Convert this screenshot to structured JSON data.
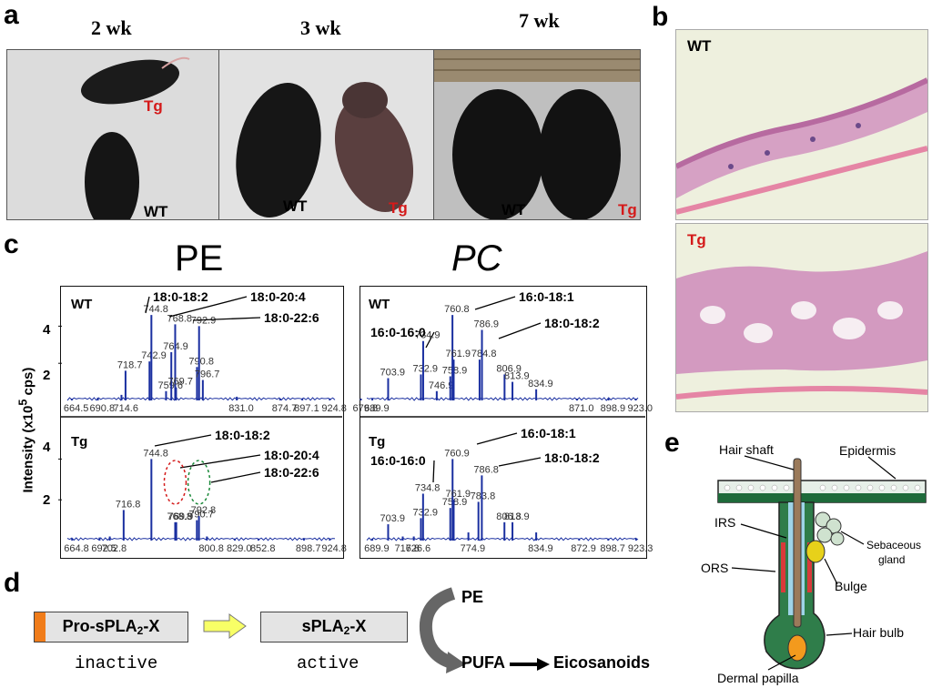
{
  "panels": {
    "a": {
      "label": "a",
      "ages": [
        "2 wk",
        "3 wk",
        "7 wk"
      ],
      "wt": "WT",
      "tg": "Tg"
    },
    "b": {
      "label": "b",
      "wt": "WT",
      "tg": "Tg"
    },
    "c": {
      "label": "c",
      "pe_title": "PE",
      "pc_title": "PC",
      "ylabel": "Intensity (x10",
      "ylabel_exp": "5",
      "ylabel_unit": " cps)",
      "yticks": [
        "4",
        "2"
      ],
      "wt": "WT",
      "tg": "Tg"
    },
    "d": {
      "label": "d",
      "pro": "Pro-sPLA",
      "pro_sub": "2",
      "pro_end": "-X",
      "active_enzyme": "sPLA",
      "active_sub": "2",
      "active_end": "-X",
      "inactive": "inactive",
      "active": "active",
      "pe": "PE",
      "pufa": "PUFA",
      "eicosanoids": "Eicosanoids"
    },
    "e": {
      "label": "e",
      "hair_shaft": "Hair shaft",
      "epidermis": "Epidermis",
      "irs": "IRS",
      "sebaceous1": "Sebaceous",
      "sebaceous2": "gland",
      "ors": "ORS",
      "bulge": "Bulge",
      "hair_bulb": "Hair bulb",
      "dermal_papilla": "Dermal papilla"
    }
  },
  "chart_data": [
    {
      "type": "bar",
      "title": "PE",
      "group": "WT",
      "ylabel": "Intensity (x10^5 cps)",
      "yticks": [
        2,
        4
      ],
      "ylim": [
        0,
        5
      ],
      "xlim": [
        660,
        930
      ],
      "peaks": [
        {
          "mz": 664.5,
          "y": 0.1
        },
        {
          "mz": 690.8,
          "y": 0.15
        },
        {
          "mz": 714.6,
          "y": 0.3
        },
        {
          "mz": 718.7,
          "y": 1.6
        },
        {
          "mz": 742.9,
          "y": 2.1
        },
        {
          "mz": 744.8,
          "y": 4.6
        },
        {
          "mz": 759.6,
          "y": 0.5
        },
        {
          "mz": 764.9,
          "y": 2.6
        },
        {
          "mz": 768.8,
          "y": 4.1
        },
        {
          "mz": 769.7,
          "y": 0.7
        },
        {
          "mz": 790.8,
          "y": 1.8
        },
        {
          "mz": 792.9,
          "y": 4.0
        },
        {
          "mz": 796.7,
          "y": 1.1
        },
        {
          "mz": 831.0,
          "y": 0.2
        },
        {
          "mz": 874.7,
          "y": 0.1
        },
        {
          "mz": 897.1,
          "y": 0.1
        },
        {
          "mz": 924.8,
          "y": 0.1
        }
      ],
      "annotations": [
        "18:0-18:2",
        "18:0-20:4",
        "18:0-22:6"
      ]
    },
    {
      "type": "bar",
      "title": "PE",
      "group": "Tg",
      "ylabel": "Intensity (x10^5 cps)",
      "yticks": [
        2,
        4
      ],
      "ylim": [
        0,
        5
      ],
      "xlim": [
        660,
        930
      ],
      "peaks": [
        {
          "mz": 664.8,
          "y": 0.1
        },
        {
          "mz": 692.5,
          "y": 0.15
        },
        {
          "mz": 702.8,
          "y": 0.2
        },
        {
          "mz": 716.8,
          "y": 1.5
        },
        {
          "mz": 744.8,
          "y": 4.0
        },
        {
          "mz": 768.8,
          "y": 0.9
        },
        {
          "mz": 769.9,
          "y": 0.9
        },
        {
          "mz": 790.7,
          "y": 1.0
        },
        {
          "mz": 792.8,
          "y": 1.2
        },
        {
          "mz": 800.8,
          "y": 0.2
        },
        {
          "mz": 829.0,
          "y": 0.1
        },
        {
          "mz": 852.8,
          "y": 0.1
        },
        {
          "mz": 898.7,
          "y": 0.1
        },
        {
          "mz": 924.8,
          "y": 0.1
        }
      ],
      "annotations": [
        "18:0-18:2",
        "18:0-20:4",
        "18:0-22:6"
      ]
    },
    {
      "type": "bar",
      "title": "PC",
      "group": "WT",
      "ylim": [
        0,
        5
      ],
      "xlim": [
        685,
        925
      ],
      "peaks": [
        {
          "mz": 689.9,
          "y": 0.1
        },
        {
          "mz": 679.8,
          "y": 0.1
        },
        {
          "mz": 703.9,
          "y": 1.2
        },
        {
          "mz": 732.9,
          "y": 1.4
        },
        {
          "mz": 734.9,
          "y": 3.2
        },
        {
          "mz": 746.9,
          "y": 0.5
        },
        {
          "mz": 758.9,
          "y": 1.3
        },
        {
          "mz": 760.8,
          "y": 4.6
        },
        {
          "mz": 761.9,
          "y": 2.2
        },
        {
          "mz": 784.8,
          "y": 2.2
        },
        {
          "mz": 786.9,
          "y": 3.8
        },
        {
          "mz": 806.9,
          "y": 1.4
        },
        {
          "mz": 813.9,
          "y": 1.0
        },
        {
          "mz": 834.9,
          "y": 0.6
        },
        {
          "mz": 871.0,
          "y": 0.1
        },
        {
          "mz": 898.9,
          "y": 0.1
        },
        {
          "mz": 923.0,
          "y": 0.1
        }
      ],
      "annotations": [
        "16:0-18:1",
        "16:0-16:0",
        "18:0-18:2"
      ]
    },
    {
      "type": "bar",
      "title": "PC",
      "group": "Tg",
      "ylim": [
        0,
        5
      ],
      "xlim": [
        685,
        925
      ],
      "peaks": [
        {
          "mz": 689.9,
          "y": 0.1
        },
        {
          "mz": 703.9,
          "y": 0.8
        },
        {
          "mz": 716.8,
          "y": 0.2
        },
        {
          "mz": 726.6,
          "y": 0.2
        },
        {
          "mz": 732.9,
          "y": 1.1
        },
        {
          "mz": 734.8,
          "y": 2.3
        },
        {
          "mz": 758.9,
          "y": 1.6
        },
        {
          "mz": 760.9,
          "y": 4.0
        },
        {
          "mz": 761.9,
          "y": 2.0
        },
        {
          "mz": 774.9,
          "y": 0.4
        },
        {
          "mz": 783.8,
          "y": 1.9
        },
        {
          "mz": 786.8,
          "y": 3.2
        },
        {
          "mz": 806.8,
          "y": 0.9
        },
        {
          "mz": 813.9,
          "y": 0.9
        },
        {
          "mz": 834.9,
          "y": 0.4
        },
        {
          "mz": 872.9,
          "y": 0.1
        },
        {
          "mz": 898.7,
          "y": 0.1
        },
        {
          "mz": 923.3,
          "y": 0.1
        }
      ],
      "annotations": [
        "16:0-18:1",
        "16:0-16:0",
        "18:0-18:2"
      ]
    }
  ]
}
